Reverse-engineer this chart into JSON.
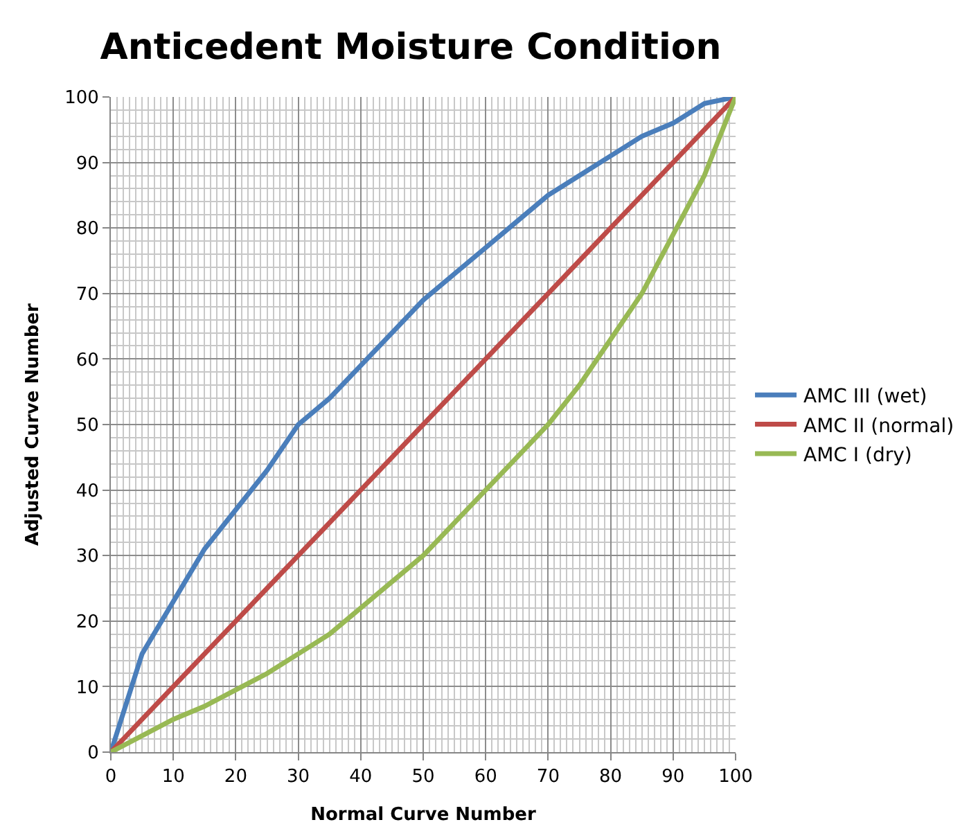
{
  "chart_data": {
    "type": "line",
    "title": "Anticedent Moisture Condition",
    "xlabel": "Normal Curve Number",
    "ylabel": "Adjusted Curve Number",
    "x": [
      0,
      5,
      10,
      15,
      20,
      25,
      30,
      35,
      40,
      45,
      50,
      55,
      60,
      65,
      70,
      75,
      80,
      85,
      90,
      95,
      100
    ],
    "series": [
      {
        "name": "AMC III (wet)",
        "color": "#4a7ebb",
        "values": [
          0,
          15,
          23,
          31,
          37,
          43,
          50,
          54,
          59,
          64,
          69,
          73,
          77,
          81,
          85,
          88,
          91,
          94,
          96,
          99,
          100
        ]
      },
      {
        "name": "AMC II (normal)",
        "color": "#be4b48",
        "values": [
          0,
          5,
          10,
          15,
          20,
          25,
          30,
          35,
          40,
          45,
          50,
          55,
          60,
          65,
          70,
          75,
          80,
          85,
          90,
          95,
          100
        ]
      },
      {
        "name": "AMC I (dry)",
        "color": "#98b954",
        "values": [
          0,
          2.5,
          5,
          7,
          9.5,
          12,
          15,
          18,
          22,
          26,
          30,
          35,
          40,
          45,
          50,
          56,
          63,
          70,
          79,
          88,
          100
        ]
      }
    ],
    "xlim": [
      0,
      100
    ],
    "ylim": [
      0,
      100
    ],
    "xticks": [
      0,
      10,
      20,
      30,
      40,
      50,
      60,
      70,
      80,
      90,
      100
    ],
    "yticks": [
      0,
      10,
      20,
      30,
      40,
      50,
      60,
      70,
      80,
      90,
      100
    ],
    "grid": true,
    "legend": "right",
    "marker": "none",
    "line_style": "solid"
  }
}
